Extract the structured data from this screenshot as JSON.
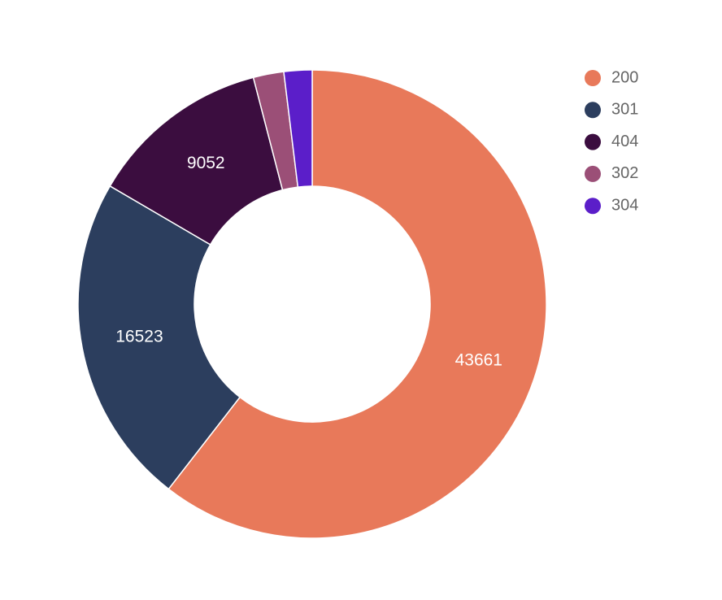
{
  "chart_data": {
    "type": "donut",
    "categories": [
      "200",
      "301",
      "404",
      "302",
      "304"
    ],
    "values": [
      43661,
      16523,
      9052,
      1520,
      1400
    ],
    "colors": [
      "#e8795a",
      "#2c3e5e",
      "#3b0d3f",
      "#9b4f77",
      "#5b1ec9"
    ],
    "legend": "top-right"
  }
}
